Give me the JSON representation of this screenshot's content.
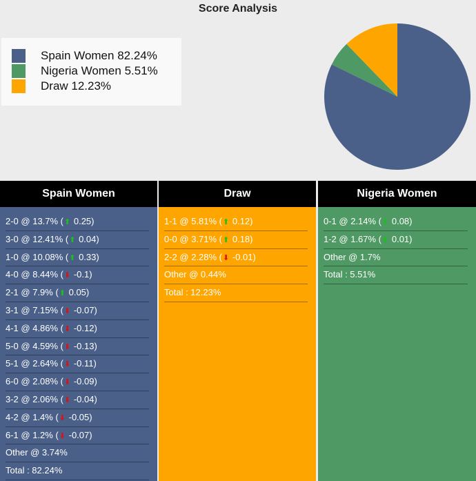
{
  "chart_data": {
    "type": "pie",
    "title": "Score Analysis",
    "slices": [
      {
        "label": "Spain Women 82.24%",
        "value": 82.24,
        "color": "#4a6089"
      },
      {
        "label": "Nigeria Women 5.51%",
        "value": 5.51,
        "color": "#4f9a64"
      },
      {
        "label": "Draw 12.23%",
        "value": 12.23,
        "color": "#ffa500"
      }
    ]
  },
  "columns": [
    {
      "header": "Spain Women",
      "color": "#4a6089",
      "rows": [
        {
          "text": "2-0 @ 13.7% (",
          "dir": "up",
          "change": " 0.25)"
        },
        {
          "text": "3-0 @ 12.41% (",
          "dir": "up",
          "change": " 0.04)"
        },
        {
          "text": "1-0 @ 10.08% (",
          "dir": "up",
          "change": " 0.33)"
        },
        {
          "text": "4-0 @ 8.44% (",
          "dir": "down",
          "change": " -0.1)"
        },
        {
          "text": "2-1 @ 7.9% (",
          "dir": "up",
          "change": " 0.05)"
        },
        {
          "text": "3-1 @ 7.15% (",
          "dir": "down",
          "change": " -0.07)"
        },
        {
          "text": "4-1 @ 4.86% (",
          "dir": "down",
          "change": " -0.12)"
        },
        {
          "text": "5-0 @ 4.59% (",
          "dir": "down",
          "change": " -0.13)"
        },
        {
          "text": "5-1 @ 2.64% (",
          "dir": "down",
          "change": " -0.11)"
        },
        {
          "text": "6-0 @ 2.08% (",
          "dir": "down",
          "change": " -0.09)"
        },
        {
          "text": "3-2 @ 2.06% (",
          "dir": "down",
          "change": " -0.04)"
        },
        {
          "text": "4-2 @ 1.4% (",
          "dir": "down",
          "change": " -0.05)"
        },
        {
          "text": "6-1 @ 1.2% (",
          "dir": "down",
          "change": " -0.07)"
        },
        {
          "text": "Other @ 3.74%",
          "dir": "",
          "change": ""
        },
        {
          "text": "Total : 82.24%",
          "dir": "",
          "change": ""
        }
      ]
    },
    {
      "header": "Draw",
      "color": "#ffa500",
      "rows": [
        {
          "text": "1-1 @ 5.81% (",
          "dir": "up",
          "change": " 0.12)"
        },
        {
          "text": "0-0 @ 3.71% (",
          "dir": "up",
          "change": " 0.18)"
        },
        {
          "text": "2-2 @ 2.28% (",
          "dir": "down",
          "change": " -0.01)"
        },
        {
          "text": "Other @ 0.44%",
          "dir": "",
          "change": ""
        },
        {
          "text": "Total : 12.23%",
          "dir": "",
          "change": ""
        }
      ]
    },
    {
      "header": "Nigeria Women",
      "color": "#4f9a64",
      "rows": [
        {
          "text": "0-1 @ 2.14% (",
          "dir": "up",
          "change": " 0.08)"
        },
        {
          "text": "1-2 @ 1.67% (",
          "dir": "up",
          "change": " 0.01)"
        },
        {
          "text": "Other @ 1.7%",
          "dir": "",
          "change": ""
        },
        {
          "text": "Total : 5.51%",
          "dir": "",
          "change": ""
        }
      ]
    }
  ]
}
